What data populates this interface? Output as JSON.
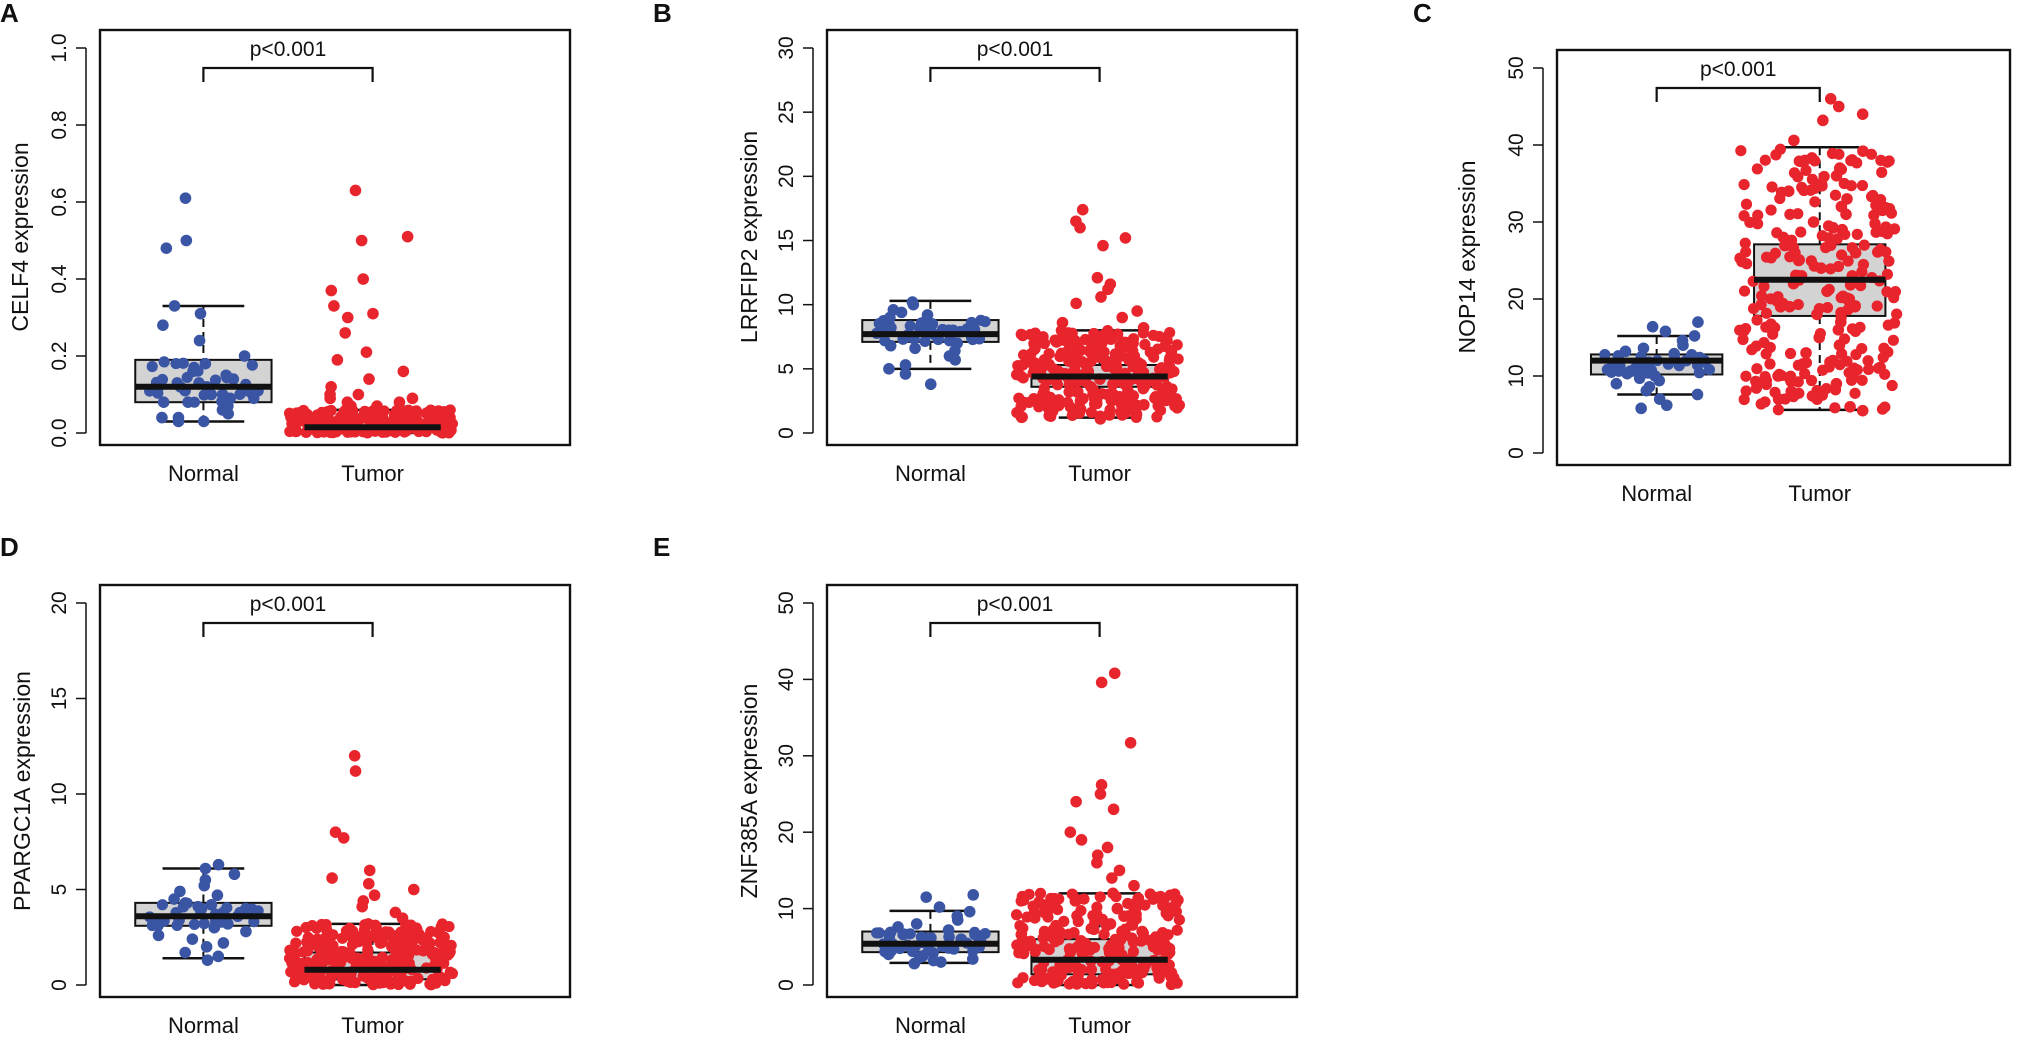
{
  "chart_data": [
    {
      "id": "A",
      "type": "box-beeswarm",
      "panel_label": "A",
      "ylabel": "CELF4 expression",
      "ylim": [
        0,
        1.0
      ],
      "yticks": [
        "0.0",
        "0.2",
        "0.4",
        "0.6",
        "0.8",
        "1.0"
      ],
      "ytick_values": [
        0,
        0.2,
        0.4,
        0.6,
        0.8,
        1.0
      ],
      "categories": [
        "Normal",
        "Tumor"
      ],
      "pvalue": "p<0.001",
      "boxes": [
        {
          "name": "Normal",
          "color": "#3a55a4",
          "min": 0.03,
          "q1": 0.08,
          "median": 0.12,
          "q3": 0.19,
          "max": 0.33,
          "points": [
            0.61,
            0.5,
            0.48,
            0.33,
            0.31,
            0.28,
            0.24,
            0.2,
            0.18,
            0.17,
            0.16,
            0.15,
            0.14,
            0.13,
            0.12,
            0.12,
            0.11,
            0.11,
            0.1,
            0.1,
            0.09,
            0.08,
            0.08,
            0.07,
            0.06,
            0.05,
            0.04,
            0.04,
            0.03,
            0.03
          ]
        },
        {
          "name": "Tumor",
          "color": "#e8242c",
          "min": 0.0,
          "q1": 0.005,
          "median": 0.015,
          "q3": 0.03,
          "max": 0.06,
          "points": [
            0.63,
            0.51,
            0.5,
            0.4,
            0.37,
            0.33,
            0.31,
            0.3,
            0.26,
            0.21,
            0.19,
            0.16,
            0.14,
            0.12,
            0.1,
            0.1,
            0.09,
            0.09,
            0.08,
            0.08,
            0.07,
            0.07
          ]
        }
      ]
    },
    {
      "id": "B",
      "type": "box-beeswarm",
      "panel_label": "B",
      "ylabel": "LRRFIP2 expression",
      "ylim": [
        0,
        30
      ],
      "yticks": [
        "0",
        "5",
        "10",
        "15",
        "20",
        "25",
        "30"
      ],
      "ytick_values": [
        0,
        5,
        10,
        15,
        20,
        25,
        30
      ],
      "categories": [
        "Normal",
        "Tumor"
      ],
      "pvalue": "p<0.001",
      "boxes": [
        {
          "name": "Normal",
          "color": "#3a55a4",
          "min": 5.0,
          "q1": 7.1,
          "median": 7.7,
          "q3": 8.8,
          "max": 10.3,
          "points": [
            10.2,
            10.0,
            9.6,
            9.4,
            9.2,
            9.0,
            8.8,
            8.6,
            8.5,
            8.3,
            8.1,
            8.0,
            7.9,
            7.8,
            7.7,
            7.6,
            7.5,
            7.4,
            7.3,
            7.2,
            7.0,
            6.8,
            6.6,
            6.4,
            6.0,
            5.7,
            5.3,
            5.0,
            4.6,
            3.8
          ]
        },
        {
          "name": "Tumor",
          "color": "#e8242c",
          "min": 1.2,
          "q1": 3.6,
          "median": 4.4,
          "q3": 5.3,
          "max": 8.0,
          "points": [
            17.4,
            16.5,
            16.0,
            15.2,
            14.6,
            12.1,
            11.6,
            11.2,
            10.6,
            10.1,
            9.5,
            9.0,
            8.6,
            8.2,
            7.8,
            7.5,
            7.2,
            7.0,
            6.8,
            6.6,
            6.4,
            6.2,
            6.0,
            5.8,
            5.6,
            5.4,
            5.2,
            5.0,
            4.8,
            4.6,
            4.4,
            4.2,
            4.0,
            3.8,
            3.6,
            3.4,
            3.2,
            3.0,
            2.8,
            2.5,
            2.2,
            1.9,
            1.6,
            1.3,
            1.1
          ]
        }
      ]
    },
    {
      "id": "C",
      "type": "box-beeswarm",
      "panel_label": "C",
      "ylabel": "NOP14 expression",
      "ylim": [
        0,
        50
      ],
      "yticks": [
        "0",
        "10",
        "20",
        "30",
        "40",
        "50"
      ],
      "ytick_values": [
        0,
        10,
        20,
        30,
        40,
        50
      ],
      "categories": [
        "Normal",
        "Tumor"
      ],
      "pvalue": "p<0.001",
      "boxes": [
        {
          "name": "Normal",
          "color": "#3a55a4",
          "min": 7.6,
          "q1": 10.2,
          "median": 12.0,
          "q3": 12.8,
          "max": 15.2,
          "points": [
            17.0,
            16.4,
            15.8,
            15.2,
            14.6,
            14.0,
            13.6,
            13.2,
            12.9,
            12.6,
            12.4,
            12.2,
            12.0,
            11.8,
            11.5,
            11.2,
            10.9,
            10.6,
            10.3,
            10.0,
            9.7,
            9.4,
            9.0,
            8.6,
            8.1,
            7.6,
            7.0,
            6.2,
            5.8
          ]
        },
        {
          "name": "Tumor",
          "color": "#e8242c",
          "min": 5.6,
          "q1": 17.8,
          "median": 22.5,
          "q3": 27.1,
          "max": 39.7,
          "points": [
            46.0,
            45.0,
            44.0,
            43.2,
            40.6,
            39.2,
            38.0,
            37.0,
            36.0,
            35.0,
            34.0,
            33.0,
            32.0,
            31.0,
            30.0,
            29.0,
            28.0,
            27.0,
            26.0,
            25.0,
            24.0,
            23.0,
            22.0,
            21.0,
            20.0,
            19.0,
            18.0,
            17.0,
            16.0,
            15.0,
            14.0,
            13.0,
            12.0,
            11.0,
            10.0,
            9.0,
            8.0,
            7.0,
            6.0,
            5.5
          ]
        }
      ]
    },
    {
      "id": "D",
      "type": "box-beeswarm",
      "panel_label": "D",
      "ylabel": "PPARGC1A expression",
      "ylim": [
        0,
        20
      ],
      "yticks": [
        "0",
        "5",
        "10",
        "15",
        "20"
      ],
      "ytick_values": [
        0,
        5,
        10,
        15,
        20
      ],
      "categories": [
        "Normal",
        "Tumor"
      ],
      "pvalue": "p<0.001",
      "boxes": [
        {
          "name": "Normal",
          "color": "#3a55a4",
          "min": 1.4,
          "q1": 3.1,
          "median": 3.6,
          "q3": 4.3,
          "max": 6.1,
          "points": [
            6.3,
            6.1,
            5.8,
            5.5,
            5.2,
            4.9,
            4.7,
            4.5,
            4.3,
            4.2,
            4.0,
            3.9,
            3.8,
            3.7,
            3.6,
            3.5,
            3.4,
            3.3,
            3.2,
            3.0,
            2.8,
            2.6,
            2.4,
            2.2,
            2.0,
            1.7,
            1.5,
            1.3
          ]
        },
        {
          "name": "Tumor",
          "color": "#e8242c",
          "min": 0.0,
          "q1": 0.3,
          "median": 0.8,
          "q3": 1.7,
          "max": 3.2,
          "points": [
            12.0,
            11.2,
            8.0,
            7.7,
            6.0,
            5.6,
            5.3,
            5.0,
            4.7,
            4.4,
            4.1,
            3.8,
            3.5,
            3.2,
            3.0,
            2.8,
            2.6,
            2.4,
            2.2,
            2.0,
            1.8,
            1.6,
            1.4,
            1.2,
            1.0,
            0.8,
            0.6,
            0.4,
            0.2,
            0.05
          ]
        }
      ]
    },
    {
      "id": "E",
      "type": "box-beeswarm",
      "panel_label": "E",
      "ylabel": "ZNF385A expression",
      "ylim": [
        0,
        50
      ],
      "yticks": [
        "0",
        "10",
        "20",
        "30",
        "40",
        "50"
      ],
      "ytick_values": [
        0,
        10,
        20,
        30,
        40,
        50
      ],
      "categories": [
        "Normal",
        "Tumor"
      ],
      "pvalue": "p<0.001",
      "boxes": [
        {
          "name": "Normal",
          "color": "#3a55a4",
          "min": 2.9,
          "q1": 4.3,
          "median": 5.4,
          "q3": 7.0,
          "max": 9.7,
          "points": [
            11.8,
            11.5,
            10.2,
            9.6,
            9.0,
            8.5,
            8.0,
            7.6,
            7.2,
            6.9,
            6.6,
            6.3,
            6.0,
            5.8,
            5.6,
            5.4,
            5.2,
            5.0,
            4.8,
            4.6,
            4.4,
            4.2,
            4.0,
            3.8,
            3.6,
            3.4,
            3.2,
            3.0,
            2.8
          ]
        },
        {
          "name": "Tumor",
          "color": "#e8242c",
          "min": 0.0,
          "q1": 1.4,
          "median": 3.3,
          "q3": 6.0,
          "max": 12.0,
          "points": [
            40.8,
            39.6,
            31.7,
            26.2,
            25.0,
            24.0,
            23.0,
            20.0,
            19.0,
            18.0,
            17.0,
            16.0,
            15.0,
            14.0,
            13.0,
            12.0,
            11.0,
            10.0,
            9.0,
            8.0,
            7.0,
            6.0,
            5.0,
            4.0,
            3.0,
            2.0,
            1.0,
            0.3
          ]
        }
      ]
    }
  ]
}
